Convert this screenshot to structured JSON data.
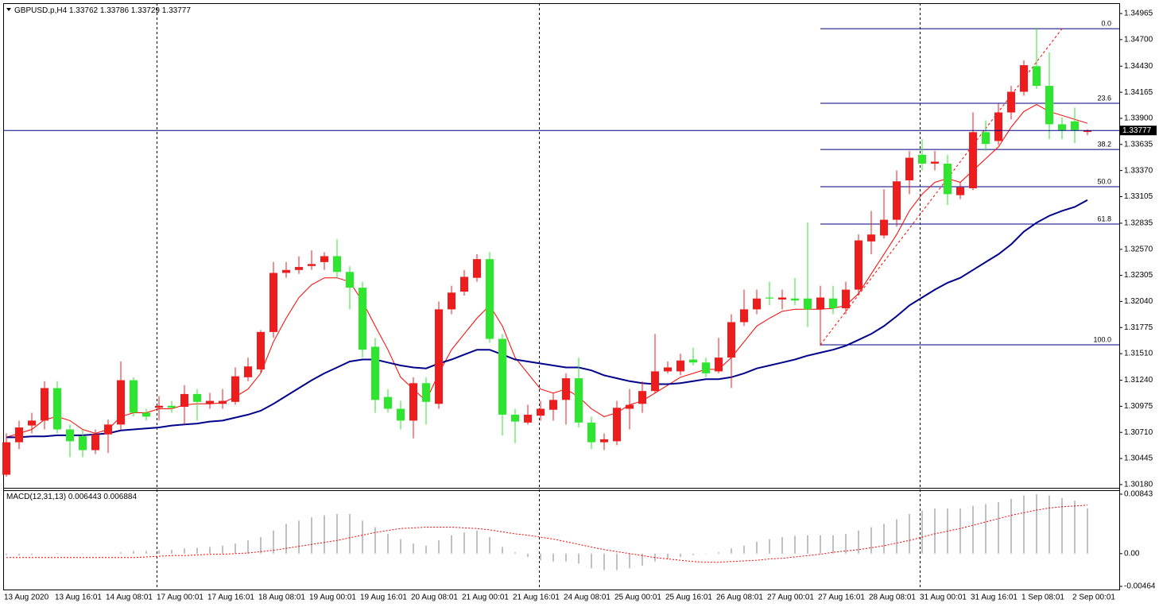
{
  "chart_data": [
    {
      "type": "candlestick",
      "title": "GBPUSD.p,H4",
      "up_color": "#ee1c1c",
      "down_color": "#2ee62e",
      "categories": [
        "13 Aug 2020",
        null,
        null,
        null,
        "13 Aug 16:01",
        null,
        null,
        null,
        "14 Aug 08:01",
        null,
        null,
        null,
        "17 Aug 00:01",
        null,
        null,
        null,
        "17 Aug 16:01",
        null,
        null,
        null,
        "18 Aug 08:01",
        null,
        null,
        null,
        "19 Aug 00:01",
        null,
        null,
        null,
        "19 Aug 16:01",
        null,
        null,
        null,
        "20 Aug 08:01",
        null,
        null,
        null,
        "21 Aug 00:01",
        null,
        null,
        null,
        "21 Aug 16:01",
        null,
        null,
        null,
        "24 Aug 08:01",
        null,
        null,
        null,
        "25 Aug 00:01",
        null,
        null,
        null,
        "25 Aug 16:01",
        null,
        null,
        null,
        "26 Aug 08:01",
        null,
        null,
        null,
        "27 Aug 00:01",
        null,
        null,
        null,
        "27 Aug 16:01",
        null,
        null,
        null,
        "28 Aug 08:01",
        null,
        null,
        null,
        "31 Aug 00:01",
        null,
        null,
        null,
        "31 Aug 16:01",
        null,
        null,
        null,
        "1 Sep 08:01",
        null,
        null,
        null,
        "2 Sep 00:01",
        null
      ],
      "open": [
        1.3028,
        1.3061,
        1.3078,
        1.3083,
        1.3116,
        1.3074,
        1.3067,
        1.3053,
        1.3069,
        1.3079,
        1.3124,
        1.3091,
        1.3096,
        1.3098,
        1.3097,
        1.311,
        1.31,
        1.31,
        1.3102,
        1.3127,
        1.3135,
        1.3173,
        1.3233,
        1.3236,
        1.324,
        1.3244,
        1.325,
        1.3234,
        1.3218,
        1.3158,
        1.3107,
        1.3095,
        1.3083,
        1.3121,
        1.31,
        1.3196,
        1.3214,
        1.3228,
        1.3247,
        1.3166,
        1.3089,
        1.3081,
        1.3088,
        1.3094,
        1.3104,
        1.3126,
        1.3081,
        1.3061,
        1.3062,
        1.3095,
        1.31,
        1.3113,
        1.3133,
        1.3133,
        1.3145,
        1.3142,
        1.3133,
        1.3147,
        1.3183,
        1.3196,
        1.3208,
        1.3206,
        1.3207,
        1.3207,
        1.3196,
        1.3207,
        1.3197,
        1.3216,
        1.3265,
        1.3271,
        1.3287,
        1.3327,
        1.3353,
        1.3344,
        1.3344,
        1.3312,
        1.3319,
        1.3376,
        1.3367,
        1.3396,
        1.3417,
        1.3443,
        1.3423,
        1.3384,
        1.3387,
        1.33762
      ],
      "high": [
        1.307,
        1.3083,
        1.3091,
        1.3123,
        1.3123,
        1.3079,
        1.3074,
        1.3074,
        1.3084,
        1.3143,
        1.3127,
        1.3095,
        1.3108,
        1.3103,
        1.3119,
        1.3115,
        1.3111,
        1.3115,
        1.3137,
        1.3147,
        1.3175,
        1.3244,
        1.3244,
        1.325,
        1.3256,
        1.3254,
        1.3267,
        1.324,
        1.3224,
        1.3167,
        1.3115,
        1.3103,
        1.3127,
        1.3127,
        1.3204,
        1.322,
        1.3236,
        1.3252,
        1.3254,
        1.3171,
        1.3095,
        1.3099,
        1.3103,
        1.3111,
        1.3131,
        1.3147,
        1.3087,
        1.307,
        1.3103,
        1.3115,
        1.3123,
        1.3171,
        1.3143,
        1.3151,
        1.3157,
        1.3147,
        1.3167,
        1.3191,
        1.3216,
        1.3216,
        1.3224,
        1.3216,
        1.3228,
        1.3284,
        1.322,
        1.322,
        1.3224,
        1.3272,
        1.3296,
        1.3318,
        1.3337,
        1.3357,
        1.3369,
        1.3357,
        1.3353,
        1.3325,
        1.3396,
        1.3388,
        1.3405,
        1.3423,
        1.3449,
        1.3482,
        1.3457,
        1.3391,
        1.3401,
        1.33786
      ],
      "low": [
        1.3026,
        1.3054,
        1.307,
        1.3074,
        1.307,
        1.3046,
        1.3046,
        1.3049,
        1.305,
        1.3074,
        1.3087,
        1.3083,
        1.3083,
        1.3091,
        1.3079,
        1.3083,
        1.3095,
        1.3095,
        1.3099,
        1.3123,
        1.3131,
        1.3167,
        1.3228,
        1.3232,
        1.3236,
        1.3236,
        1.3228,
        1.3196,
        1.3147,
        1.3091,
        1.3091,
        1.3074,
        1.3065,
        1.3079,
        1.3095,
        1.3191,
        1.321,
        1.3224,
        1.3162,
        1.3068,
        1.306,
        1.3079,
        1.3083,
        1.3083,
        1.3079,
        1.3076,
        1.3054,
        1.3053,
        1.3058,
        1.3074,
        1.3091,
        1.3111,
        1.3131,
        1.3129,
        1.3139,
        1.3127,
        1.3131,
        1.3116,
        1.3179,
        1.3191,
        1.32,
        1.3196,
        1.32,
        1.3178,
        1.3159,
        1.3191,
        1.3191,
        1.3212,
        1.3252,
        1.3268,
        1.328,
        1.3313,
        1.3337,
        1.3337,
        1.3302,
        1.3308,
        1.3317,
        1.3357,
        1.3363,
        1.3389,
        1.3413,
        1.342,
        1.3369,
        1.3369,
        1.3365,
        1.33729
      ],
      "close": [
        1.3061,
        1.3076,
        1.3083,
        1.3116,
        1.3074,
        1.3062,
        1.3053,
        1.3069,
        1.3079,
        1.3124,
        1.3091,
        1.3087,
        1.3098,
        1.3096,
        1.311,
        1.3102,
        1.3103,
        1.3103,
        1.3128,
        1.3138,
        1.3173,
        1.3233,
        1.3236,
        1.3239,
        1.3242,
        1.325,
        1.3234,
        1.3218,
        1.3155,
        1.3104,
        1.3095,
        1.3083,
        1.3121,
        1.3102,
        1.3196,
        1.3213,
        1.3229,
        1.3247,
        1.3166,
        1.3089,
        1.3082,
        1.3089,
        1.3095,
        1.3104,
        1.3126,
        1.3081,
        1.3061,
        1.3064,
        1.3096,
        1.3099,
        1.3113,
        1.3133,
        1.3137,
        1.3144,
        1.3142,
        1.3131,
        1.3147,
        1.3183,
        1.3196,
        1.3207,
        1.3207,
        1.3208,
        1.3205,
        1.3196,
        1.3208,
        1.3197,
        1.3216,
        1.3266,
        1.3272,
        1.3287,
        1.3326,
        1.335,
        1.3344,
        1.3346,
        1.3313,
        1.332,
        1.3376,
        1.3364,
        1.3396,
        1.3417,
        1.3444,
        1.3423,
        1.3384,
        1.3378,
        1.3378,
        1.33777
      ],
      "overlays": [
        {
          "color": "#ff0000",
          "values": [
            1.3066,
            1.307,
            1.3074,
            1.3084,
            1.3087,
            1.3083,
            1.3074,
            1.307,
            1.3074,
            1.3087,
            1.3091,
            1.3091,
            1.3095,
            1.3095,
            1.3099,
            1.31,
            1.31,
            1.3101,
            1.3107,
            1.3115,
            1.3131,
            1.3163,
            1.3187,
            1.3208,
            1.3221,
            1.3228,
            1.3228,
            1.3224,
            1.3204,
            1.3179,
            1.3155,
            1.3127,
            1.3115,
            1.3103,
            1.3131,
            1.3155,
            1.3171,
            1.3187,
            1.32,
            1.3179,
            1.3147,
            1.3131,
            1.3115,
            1.3111,
            1.3115,
            1.3107,
            1.3095,
            1.3087,
            1.3091,
            1.3099,
            1.3103,
            1.3111,
            1.3119,
            1.3127,
            1.3131,
            1.3135,
            1.3135,
            1.3147,
            1.3163,
            1.3179,
            1.3187,
            1.3194,
            1.3196,
            1.3196,
            1.3196,
            1.3197,
            1.32,
            1.3212,
            1.3232,
            1.3252,
            1.3272,
            1.3296,
            1.3313,
            1.3325,
            1.3329,
            1.3325,
            1.3337,
            1.3349,
            1.3361,
            1.3381,
            1.3397,
            1.3404,
            1.3397,
            1.3393,
            1.3389,
            1.3385
          ]
        },
        {
          "color": "#00008b",
          "values": [
            1.3066,
            1.3066,
            1.3067,
            1.3067,
            1.3068,
            1.3068,
            1.3068,
            1.3069,
            1.307,
            1.3073,
            1.3074,
            1.3075,
            1.3076,
            1.3078,
            1.3079,
            1.308,
            1.3082,
            1.3083,
            1.3086,
            1.3089,
            1.3093,
            1.31,
            1.3108,
            1.3116,
            1.3124,
            1.3131,
            1.3137,
            1.3143,
            1.3145,
            1.3145,
            1.3142,
            1.3139,
            1.3137,
            1.3136,
            1.3141,
            1.3145,
            1.315,
            1.3155,
            1.3155,
            1.315,
            1.3145,
            1.3143,
            1.3141,
            1.3139,
            1.3137,
            1.3137,
            1.3134,
            1.3129,
            1.3126,
            1.3123,
            1.3121,
            1.312,
            1.312,
            1.3121,
            1.3123,
            1.3125,
            1.3125,
            1.3127,
            1.3131,
            1.3136,
            1.3139,
            1.3142,
            1.3145,
            1.3149,
            1.3152,
            1.3155,
            1.3159,
            1.3165,
            1.3171,
            1.3179,
            1.3189,
            1.32,
            1.3208,
            1.3216,
            1.3223,
            1.3228,
            1.3236,
            1.3244,
            1.3252,
            1.3262,
            1.3275,
            1.3284,
            1.3291,
            1.3296,
            1.33,
            1.3307
          ]
        }
      ],
      "fibo": {
        "high": 1.34811,
        "low": 1.316,
        "color": "#000080",
        "trend_color": "#ff0000",
        "levels": [
          {
            "value": 0,
            "label": "0.0"
          },
          23.6,
          38.2,
          {
            "value": 50,
            "label": "50.0"
          },
          61.8,
          {
            "value": 100,
            "label": "100.0"
          }
        ]
      },
      "ylim": [
        1.30155,
        1.3507
      ],
      "yticks": [
        1.34965,
        {
          "value": 1.347,
          "label": "1.34700"
        },
        {
          "value": 1.3443,
          "label": "1.34430"
        },
        1.34165,
        {
          "value": 1.339,
          "label": "1.33900"
        },
        1.33635,
        {
          "value": 1.3337,
          "label": "1.33370"
        },
        1.33105,
        1.32835,
        {
          "value": 1.3257,
          "label": "1.32570"
        },
        1.32305,
        {
          "value": 1.3204,
          "label": "1.32040"
        },
        1.31775,
        {
          "value": 1.3151,
          "label": "1.31510"
        },
        {
          "value": 1.3124,
          "label": "1.31240"
        },
        1.30975,
        {
          "value": 1.3071,
          "label": "1.30710"
        },
        1.30445,
        {
          "value": 1.3018,
          "label": "1.30180"
        }
      ],
      "grid": false
    },
    {
      "type": "macd",
      "title": "MACD(12,31,13)",
      "color": "#c0c0c0",
      "signal_color": "#ff0000",
      "values": [
        -0.00019,
        -0.00028,
        -0.00019,
        0,
        9e-05,
        0,
        -9e-05,
        -9e-05,
        0,
        0.00019,
        0.00037,
        0.00037,
        0.00047,
        0.00056,
        0.00075,
        0.00084,
        0.00094,
        0.00112,
        0.00141,
        0.00187,
        0.00234,
        0.00328,
        0.00422,
        0.00469,
        0.00515,
        0.00543,
        0.00562,
        0.00562,
        0.00469,
        0.00375,
        0.00281,
        0.00206,
        0.00141,
        0.00112,
        0.00187,
        0.00262,
        0.003,
        0.00328,
        0.00234,
        0.00094,
        0.00019,
        -0.00047,
        -0.00094,
        -0.00112,
        -0.00112,
        -0.00141,
        -0.00206,
        -0.00234,
        -0.00234,
        -0.00206,
        -0.00169,
        -0.00112,
        -0.00075,
        -0.00047,
        -0.00019,
        0,
        0.00019,
        0.00075,
        0.00112,
        0.00169,
        0.00206,
        0.00234,
        0.00253,
        0.00262,
        0.00262,
        0.00262,
        0.00281,
        0.00328,
        0.00375,
        0.00422,
        0.00487,
        0.00562,
        0.00609,
        0.00637,
        0.00637,
        0.00637,
        0.00675,
        0.00703,
        0.00731,
        0.00778,
        0.00825,
        0.00843,
        0.00825,
        0.00787,
        0.0075,
        0.006443
      ],
      "signal": [
        -0.00056,
        -0.00056,
        -0.00056,
        -0.00056,
        -0.00056,
        -0.00056,
        -0.00056,
        -0.00056,
        -0.00056,
        -0.00056,
        -0.00056,
        -0.00047,
        -0.00037,
        -0.00028,
        -0.00028,
        -0.00019,
        -9e-05,
        -9e-05,
        0,
        9e-05,
        0.00028,
        0.00047,
        0.00075,
        0.00103,
        0.00131,
        0.00159,
        0.00187,
        0.00225,
        0.00262,
        0.003,
        0.00328,
        0.00356,
        0.00365,
        0.00375,
        0.00375,
        0.00375,
        0.00365,
        0.00356,
        0.00337,
        0.00309,
        0.00281,
        0.00262,
        0.00234,
        0.00206,
        0.00169,
        0.00131,
        0.00094,
        0.00056,
        0.00028,
        0,
        -0.00028,
        -0.00056,
        -0.00075,
        -0.00094,
        -0.00112,
        -0.00122,
        -0.00122,
        -0.00112,
        -0.00103,
        -0.00094,
        -0.00075,
        -0.00066,
        -0.00047,
        -0.00028,
        -9e-05,
        0.00019,
        0.00037,
        0.00056,
        0.00084,
        0.00112,
        0.0015,
        0.00187,
        0.00234,
        0.00281,
        0.00319,
        0.00356,
        0.00403,
        0.0045,
        0.00497,
        0.00543,
        0.00581,
        0.00618,
        0.00647,
        0.00665,
        0.00675,
        0.006884
      ],
      "ylim": [
        -0.00464,
        0.00843
      ],
      "yticks": [
        0.00843,
        {
          "value": 0,
          "label": "0.00"
        },
        -0.00464
      ]
    }
  ]
}
